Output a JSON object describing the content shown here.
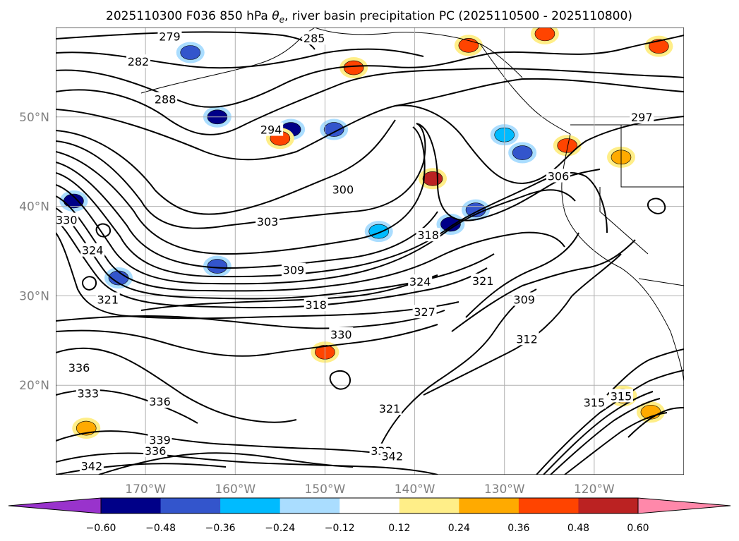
{
  "chart_data": {
    "type": "contour_map",
    "title": "2025110300 F036 850 hPa θe, river basin precipitation PC (2025110500 - 2025110800)",
    "title_pre": "2025110300 F036 850 hPa ",
    "title_sym": "θ",
    "title_sub": "e",
    "title_post": ", river basin precipitation PC (2025110500 - 2025110800)",
    "lon_range": [
      -180,
      -110
    ],
    "lat_range": [
      10,
      60
    ],
    "x_ticks": [
      {
        "lon": -170,
        "label": "170°W"
      },
      {
        "lon": -160,
        "label": "160°W"
      },
      {
        "lon": -150,
        "label": "150°W"
      },
      {
        "lon": -140,
        "label": "140°W"
      },
      {
        "lon": -130,
        "label": "130°W"
      },
      {
        "lon": -120,
        "label": "120°W"
      }
    ],
    "y_ticks": [
      {
        "lat": 50,
        "label": "50°N"
      },
      {
        "lat": 40,
        "label": "40°N"
      },
      {
        "lat": 30,
        "label": "30°N"
      },
      {
        "lat": 20,
        "label": "20°N"
      }
    ],
    "grid": true,
    "contour_variable": "850 hPa equivalent potential temperature (K)",
    "contour_labels": [
      {
        "v": "279",
        "lon": -167.3,
        "lat": 59.0
      },
      {
        "v": "282",
        "lon": -170.8,
        "lat": 56.2
      },
      {
        "v": "285",
        "lon": -151.2,
        "lat": 58.8
      },
      {
        "v": "288",
        "lon": -167.8,
        "lat": 52.0
      },
      {
        "v": "294",
        "lon": -156.0,
        "lat": 48.6
      },
      {
        "v": "300",
        "lon": -148.0,
        "lat": 41.9
      },
      {
        "v": "303",
        "lon": -156.4,
        "lat": 38.3
      },
      {
        "v": "309",
        "lon": -153.5,
        "lat": 32.9
      },
      {
        "v": "309",
        "lon": -127.8,
        "lat": 29.6
      },
      {
        "v": "312",
        "lon": -127.5,
        "lat": 25.2
      },
      {
        "v": "315",
        "lon": -120.0,
        "lat": 18.1
      },
      {
        "v": "315",
        "lon": -117.0,
        "lat": 18.8
      },
      {
        "v": "318",
        "lon": -151.0,
        "lat": 29.0
      },
      {
        "v": "318",
        "lon": -138.5,
        "lat": 36.8
      },
      {
        "v": "321",
        "lon": -174.2,
        "lat": 29.6
      },
      {
        "v": "321",
        "lon": -132.4,
        "lat": 31.7
      },
      {
        "v": "321",
        "lon": -142.8,
        "lat": 17.4
      },
      {
        "v": "324",
        "lon": -175.9,
        "lat": 35.1
      },
      {
        "v": "324",
        "lon": -139.4,
        "lat": 31.6
      },
      {
        "v": "327",
        "lon": -138.9,
        "lat": 28.2
      },
      {
        "v": "330",
        "lon": -148.2,
        "lat": 25.7
      },
      {
        "v": "330",
        "lon": -178.8,
        "lat": 38.5
      },
      {
        "v": "333",
        "lon": -176.4,
        "lat": 19.1
      },
      {
        "v": "333",
        "lon": -143.7,
        "lat": 12.7
      },
      {
        "v": "336",
        "lon": -177.4,
        "lat": 22.0
      },
      {
        "v": "336",
        "lon": -168.4,
        "lat": 18.2
      },
      {
        "v": "336",
        "lon": -168.9,
        "lat": 12.7
      },
      {
        "v": "339",
        "lon": -168.4,
        "lat": 13.9
      },
      {
        "v": "342",
        "lon": -176.0,
        "lat": 11.0
      },
      {
        "v": "342",
        "lon": -142.5,
        "lat": 12.1
      },
      {
        "v": "297",
        "lon": -114.7,
        "lat": 50.0
      },
      {
        "v": "306",
        "lon": -124.0,
        "lat": 43.4
      }
    ],
    "colorbar": {
      "ticks": [
        "−0.60",
        "−0.48",
        "−0.36",
        "−0.24",
        "−0.12",
        "0.12",
        "0.24",
        "0.36",
        "0.48",
        "0.60"
      ],
      "colors": [
        "#9933cc",
        "#000088",
        "#3355cc",
        "#00bbff",
        "#aaddff",
        "#ffffff",
        "#ffee88",
        "#ffaa00",
        "#ff4400",
        "#bb2222",
        "#ff88aa"
      ],
      "extend": "both"
    },
    "precip_pc_anomalies": [
      {
        "lon": -178.0,
        "lat": 40.6,
        "value": -0.48
      },
      {
        "lon": -162.0,
        "lat": 50.0,
        "value": -0.48
      },
      {
        "lon": -153.8,
        "lat": 48.6,
        "value": -0.48
      },
      {
        "lon": -165.0,
        "lat": 57.2,
        "value": -0.36
      },
      {
        "lon": -173.0,
        "lat": 32.0,
        "value": -0.36
      },
      {
        "lon": -149.0,
        "lat": 48.6,
        "value": -0.36
      },
      {
        "lon": -136.0,
        "lat": 38.0,
        "value": -0.48
      },
      {
        "lon": -133.2,
        "lat": 39.6,
        "value": -0.36
      },
      {
        "lon": -128.0,
        "lat": 46.0,
        "value": -0.36
      },
      {
        "lon": -162.0,
        "lat": 33.3,
        "value": -0.36
      },
      {
        "lon": -144.0,
        "lat": 37.2,
        "value": -0.24
      },
      {
        "lon": -130.0,
        "lat": 48.0,
        "value": -0.24
      },
      {
        "lon": -146.8,
        "lat": 55.5,
        "value": 0.36
      },
      {
        "lon": -134.0,
        "lat": 58.0,
        "value": 0.36
      },
      {
        "lon": -155.0,
        "lat": 47.6,
        "value": 0.36
      },
      {
        "lon": -138.0,
        "lat": 43.1,
        "value": 0.48
      },
      {
        "lon": -123.0,
        "lat": 46.8,
        "value": 0.36
      },
      {
        "lon": -125.5,
        "lat": 59.3,
        "value": 0.36
      },
      {
        "lon": -112.8,
        "lat": 57.9,
        "value": 0.36
      },
      {
        "lon": -150.0,
        "lat": 23.7,
        "value": 0.36
      },
      {
        "lon": -117.0,
        "lat": 45.5,
        "value": 0.24
      },
      {
        "lon": -116.8,
        "lat": 18.8,
        "value": 0.24
      },
      {
        "lon": -113.7,
        "lat": 17.0,
        "value": 0.24
      },
      {
        "lon": -176.6,
        "lat": 15.2,
        "value": 0.24
      }
    ],
    "features": [
      "coastlines",
      "state_borders"
    ]
  }
}
